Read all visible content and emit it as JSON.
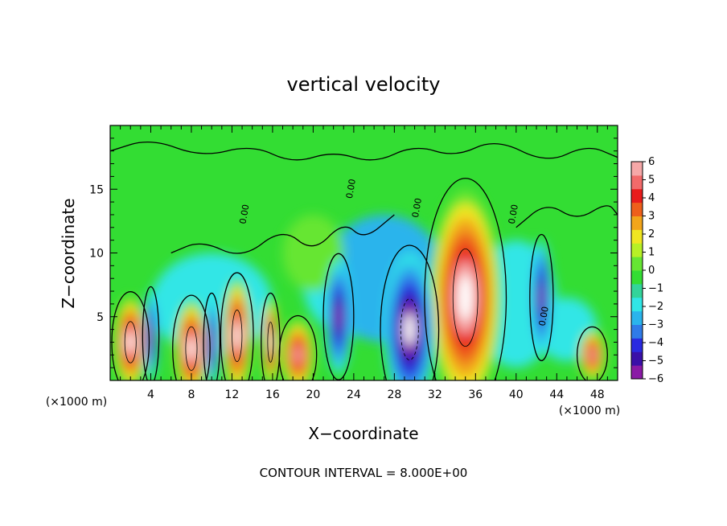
{
  "chart_data": {
    "type": "heatmap",
    "title": "vertical velocity",
    "xlabel": "X−coordinate",
    "ylabel": "Z−coordinate",
    "x_unit_left": "(×1000 m)",
    "x_unit_right": "(×1000 m)",
    "x_ticks": [
      "4",
      "8",
      "12",
      "16",
      "20",
      "24",
      "28",
      "32",
      "36",
      "40",
      "44",
      "48"
    ],
    "y_ticks": [
      "5",
      "10",
      "15"
    ],
    "xlim": [
      0,
      50
    ],
    "ylim": [
      0,
      20
    ],
    "colorbar": {
      "ticks": [
        "6",
        "5",
        "4",
        "3",
        "2",
        "1",
        "0",
        "−1",
        "−2",
        "−3",
        "−4",
        "−5",
        "−6"
      ],
      "range": [
        -6,
        6
      ],
      "colors": [
        "#8a1aa6",
        "#3a10a8",
        "#2a2ae0",
        "#2f7be8",
        "#2ab4ec",
        "#30e6e6",
        "#33d49a",
        "#33dd33",
        "#66e633",
        "#b7f026",
        "#f0e621",
        "#f2a51a",
        "#ee5f1b",
        "#e81c1c",
        "#f26a6a",
        "#f6a8a8"
      ]
    },
    "contour_label": "0.00",
    "annotation": "CONTOUR INTERVAL = 8.000E+00",
    "grid": false,
    "features": [
      {
        "x": 35,
        "z": 6.5,
        "sign": "positive",
        "peak": "max"
      },
      {
        "x": 29.5,
        "z": 4,
        "sign": "negative",
        "peak": "min"
      },
      {
        "x": 12.5,
        "z": 3.5,
        "sign": "positive",
        "peak": "max"
      },
      {
        "x": 8,
        "z": 2.5,
        "sign": "positive",
        "peak": "max"
      },
      {
        "x": 2,
        "z": 3,
        "sign": "positive",
        "peak": "max"
      },
      {
        "x": 15.8,
        "z": 3,
        "sign": "positive",
        "peak": "max"
      },
      {
        "x": 18.5,
        "z": 2,
        "sign": "positive",
        "peak": "strong"
      },
      {
        "x": 47.5,
        "z": 2,
        "sign": "positive",
        "peak": "strong"
      },
      {
        "x": 42.5,
        "z": 6.5,
        "sign": "negative",
        "peak": "strong"
      },
      {
        "x": 22.5,
        "z": 5,
        "sign": "negative",
        "peak": "strong"
      },
      {
        "x": 10,
        "z": 3,
        "sign": "negative",
        "peak": "strong"
      },
      {
        "x": 4,
        "z": 3.5,
        "sign": "negative",
        "peak": "strong"
      }
    ]
  }
}
